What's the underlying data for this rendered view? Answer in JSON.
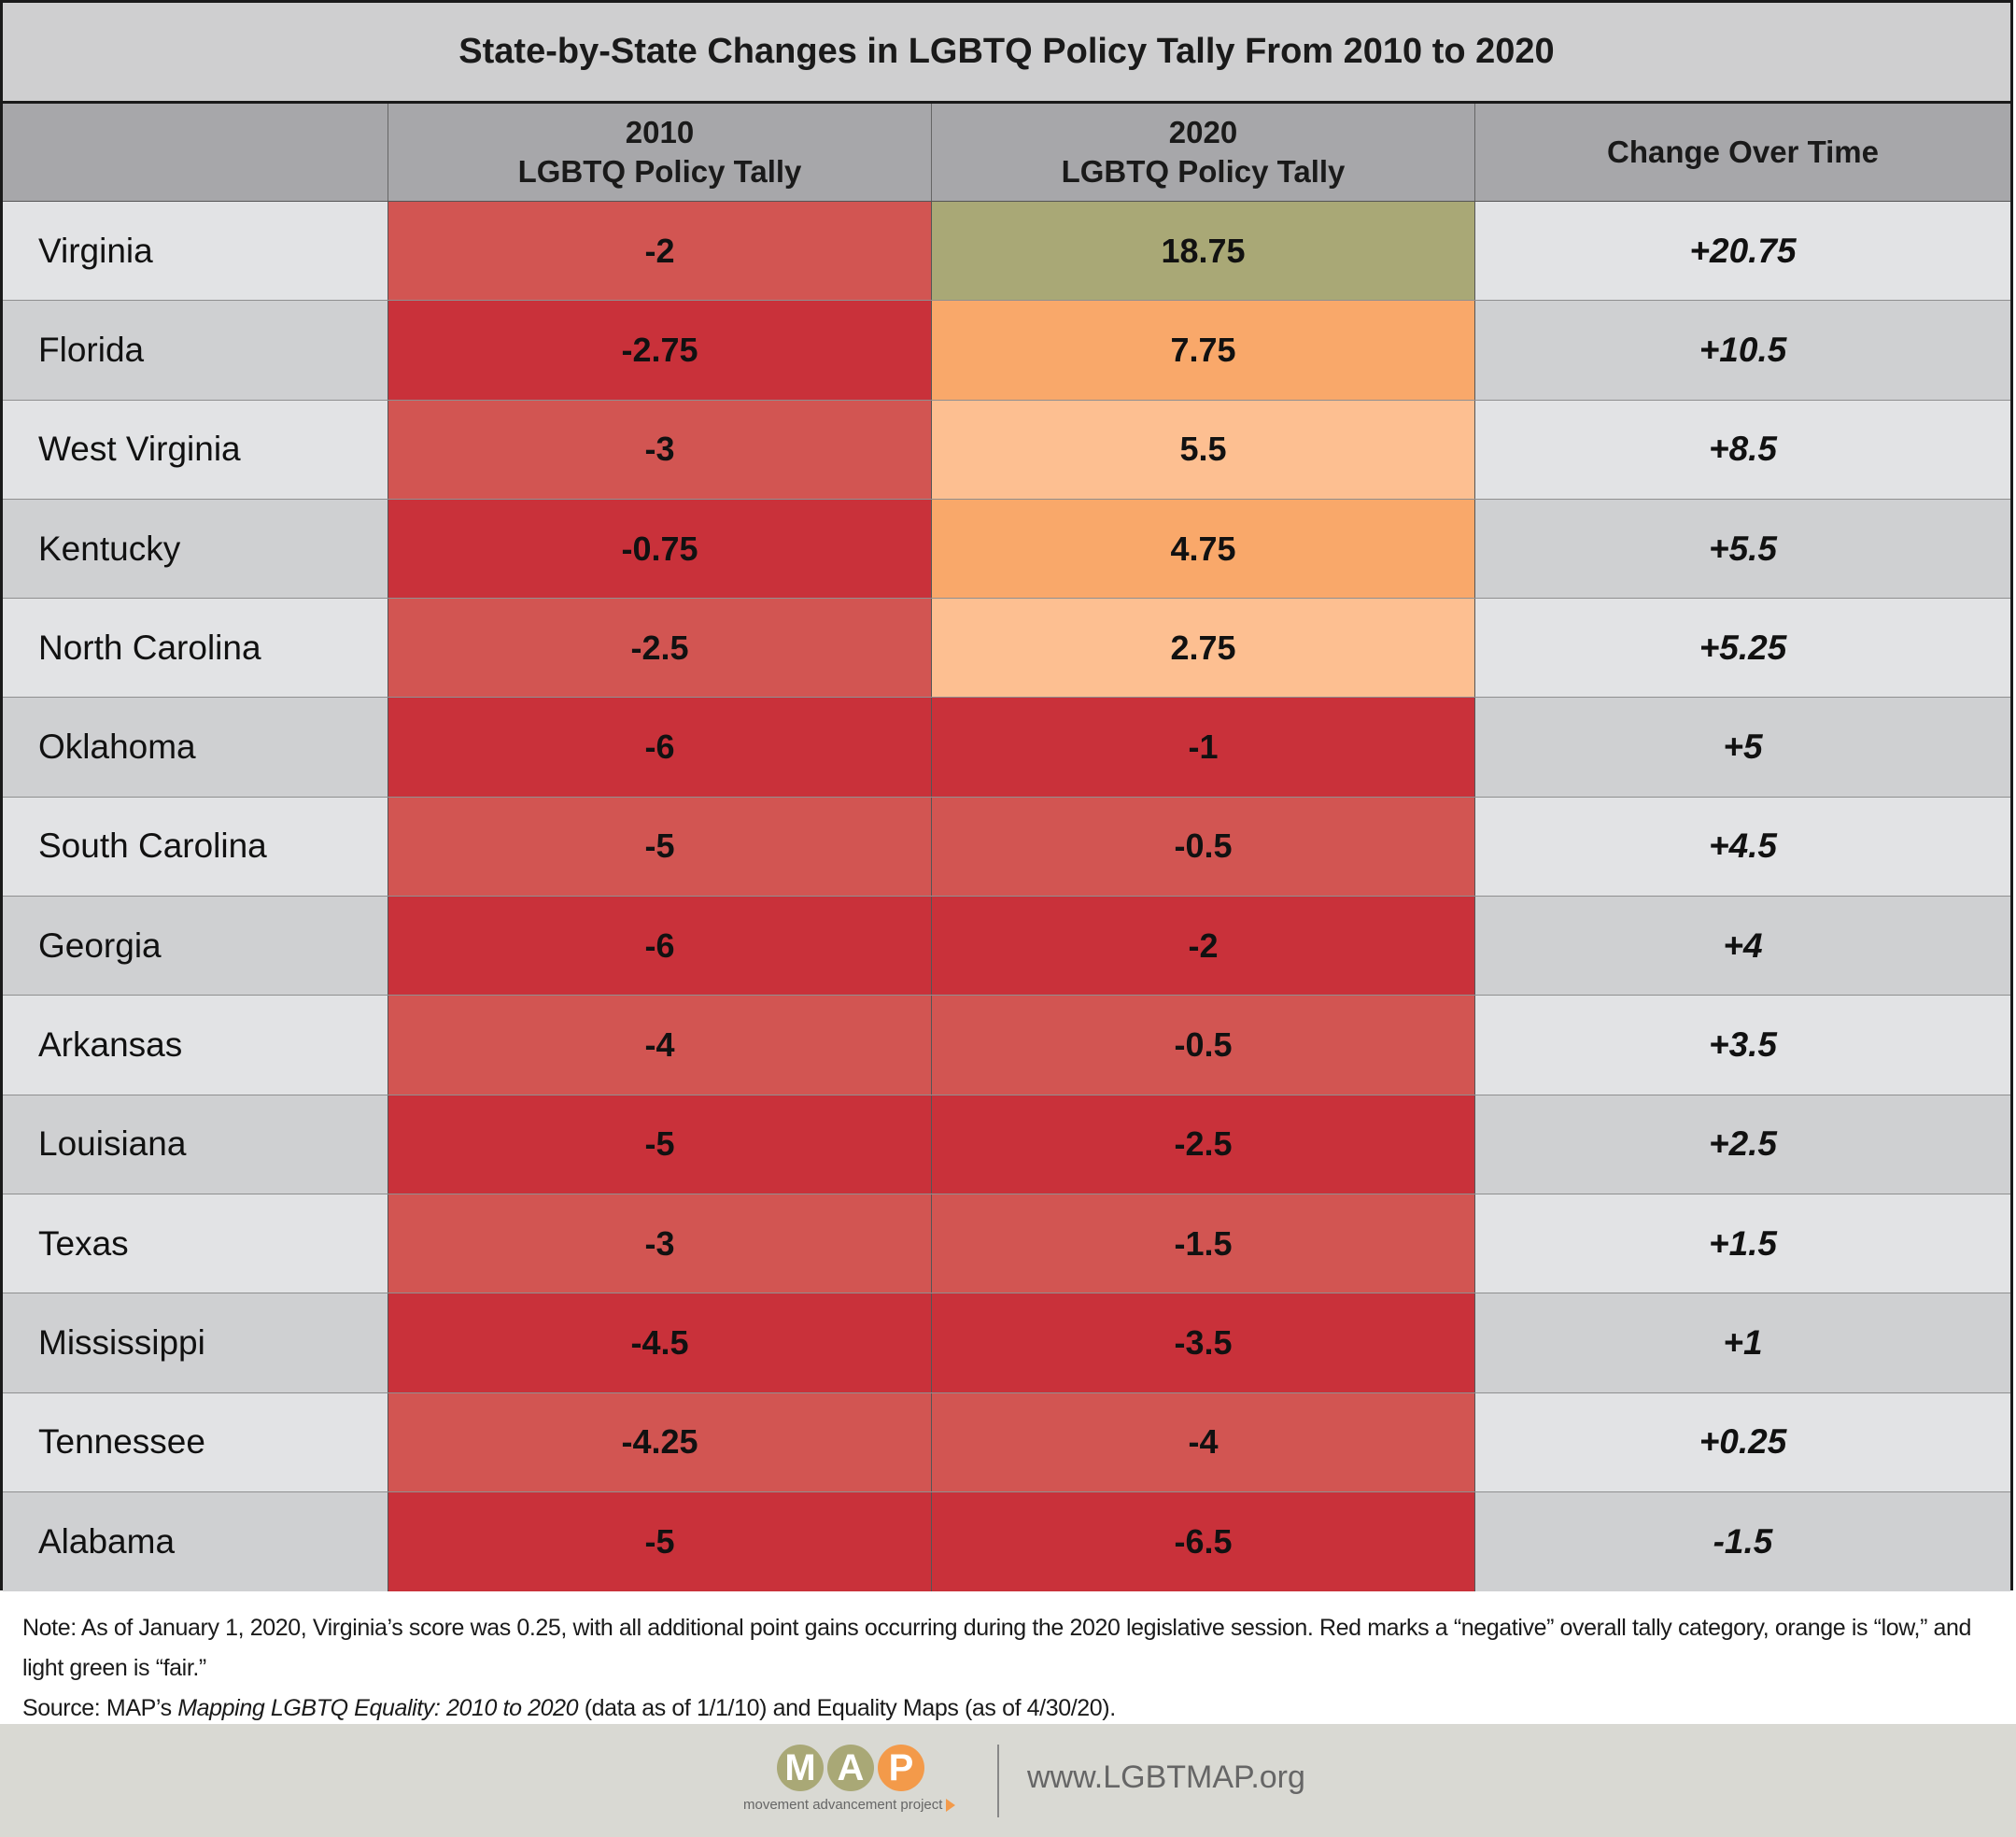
{
  "chart_data": {
    "type": "table",
    "title": "State-by-State Changes in LGBTQ Policy Tally From 2010 to 2020",
    "columns": [
      {
        "line1": "",
        "line2": ""
      },
      {
        "line1": "2010",
        "line2": "LGBTQ Policy Tally"
      },
      {
        "line1": "2020",
        "line2": "LGBTQ Policy Tally"
      },
      {
        "line1": "Change Over Time",
        "line2": ""
      }
    ],
    "rows": [
      {
        "state": "Virginia",
        "t2010": "-2",
        "t2020": "18.75",
        "change": "+20.75",
        "c2010": "#d25552",
        "c2020": "#a9a876"
      },
      {
        "state": "Florida",
        "t2010": "-2.75",
        "t2020": "7.75",
        "change": "+10.5",
        "c2010": "#c9313a",
        "c2020": "#f9a86a"
      },
      {
        "state": "West Virginia",
        "t2010": "-3",
        "t2020": "5.5",
        "change": "+8.5",
        "c2010": "#d25552",
        "c2020": "#fdbf91"
      },
      {
        "state": "Kentucky",
        "t2010": "-0.75",
        "t2020": "4.75",
        "change": "+5.5",
        "c2010": "#c9313a",
        "c2020": "#f9a86a"
      },
      {
        "state": "North Carolina",
        "t2010": "-2.5",
        "t2020": "2.75",
        "change": "+5.25",
        "c2010": "#d25552",
        "c2020": "#fdbf91"
      },
      {
        "state": "Oklahoma",
        "t2010": "-6",
        "t2020": "-1",
        "change": "+5",
        "c2010": "#c9313a",
        "c2020": "#c9313a"
      },
      {
        "state": "South Carolina",
        "t2010": "-5",
        "t2020": "-0.5",
        "change": "+4.5",
        "c2010": "#d25552",
        "c2020": "#d25552"
      },
      {
        "state": "Georgia",
        "t2010": "-6",
        "t2020": "-2",
        "change": "+4",
        "c2010": "#c9313a",
        "c2020": "#c9313a"
      },
      {
        "state": "Arkansas",
        "t2010": "-4",
        "t2020": "-0.5",
        "change": "+3.5",
        "c2010": "#d25552",
        "c2020": "#d25552"
      },
      {
        "state": "Louisiana",
        "t2010": "-5",
        "t2020": "-2.5",
        "change": "+2.5",
        "c2010": "#c9313a",
        "c2020": "#c9313a"
      },
      {
        "state": "Texas",
        "t2010": "-3",
        "t2020": "-1.5",
        "change": "+1.5",
        "c2010": "#d25552",
        "c2020": "#d25552"
      },
      {
        "state": "Mississippi",
        "t2010": "-4.5",
        "t2020": "-3.5",
        "change": "+1",
        "c2010": "#c9313a",
        "c2020": "#c9313a"
      },
      {
        "state": "Tennessee",
        "t2010": "-4.25",
        "t2020": "-4",
        "change": "+0.25",
        "c2010": "#d25552",
        "c2020": "#d25552"
      },
      {
        "state": "Alabama",
        "t2010": "-5",
        "t2020": "-6.5",
        "change": "-1.5",
        "c2010": "#c9313a",
        "c2020": "#c9313a"
      }
    ]
  },
  "note": {
    "line1": "Note: As of January 1, 2020, Virginia’s score was 0.25, with all additional point gains occurring during the 2020 legislative session. Red marks a “negative” overall tally category, orange is “low,” and light green is “fair.”",
    "source_prefix": "Source: MAP’s ",
    "source_title": "Mapping LGBTQ Equality: 2010 to 2020",
    "source_suffix": " (data as of 1/1/10) and Equality Maps (as of 4/30/20)."
  },
  "footer": {
    "logo_letters": [
      "M",
      "A",
      "P"
    ],
    "logo_colors": [
      "#a9a876",
      "#a9a876",
      "#f39a4a"
    ],
    "logo_tagline": "movement advancement project",
    "url": "www.LGBTMAP.org"
  }
}
